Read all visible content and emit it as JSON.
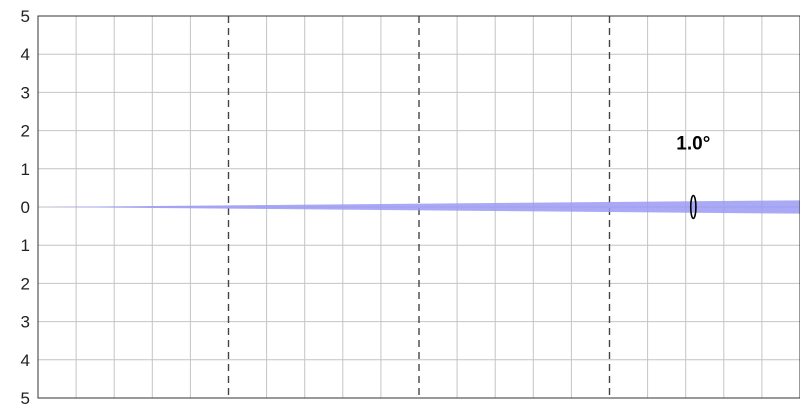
{
  "chart_data": {
    "type": "area",
    "title": "",
    "xlabel": "",
    "ylabel": "",
    "y_ticks": [
      {
        "value": 5,
        "label": "5"
      },
      {
        "value": 4,
        "label": "4"
      },
      {
        "value": 3,
        "label": "3"
      },
      {
        "value": 2,
        "label": "2"
      },
      {
        "value": 1,
        "label": "1"
      },
      {
        "value": 0,
        "label": "0"
      },
      {
        "value": -1,
        "label": "1"
      },
      {
        "value": -2,
        "label": "2"
      },
      {
        "value": -3,
        "label": "3"
      },
      {
        "value": -4,
        "label": "4"
      },
      {
        "value": -5,
        "label": "5"
      }
    ],
    "ylim": [
      -5,
      5
    ],
    "xlim": [
      0,
      20
    ],
    "grid": true,
    "minor_grid_step": 1,
    "major_dashed_x": [
      5,
      10,
      15
    ],
    "beam": {
      "angle_deg": 1.0,
      "origin": [
        0,
        0
      ],
      "fill_color": "#9a9af5"
    },
    "annotation": {
      "text": "1.0°",
      "at_x": 17.2,
      "ellipse_half_height": 0.3
    }
  }
}
